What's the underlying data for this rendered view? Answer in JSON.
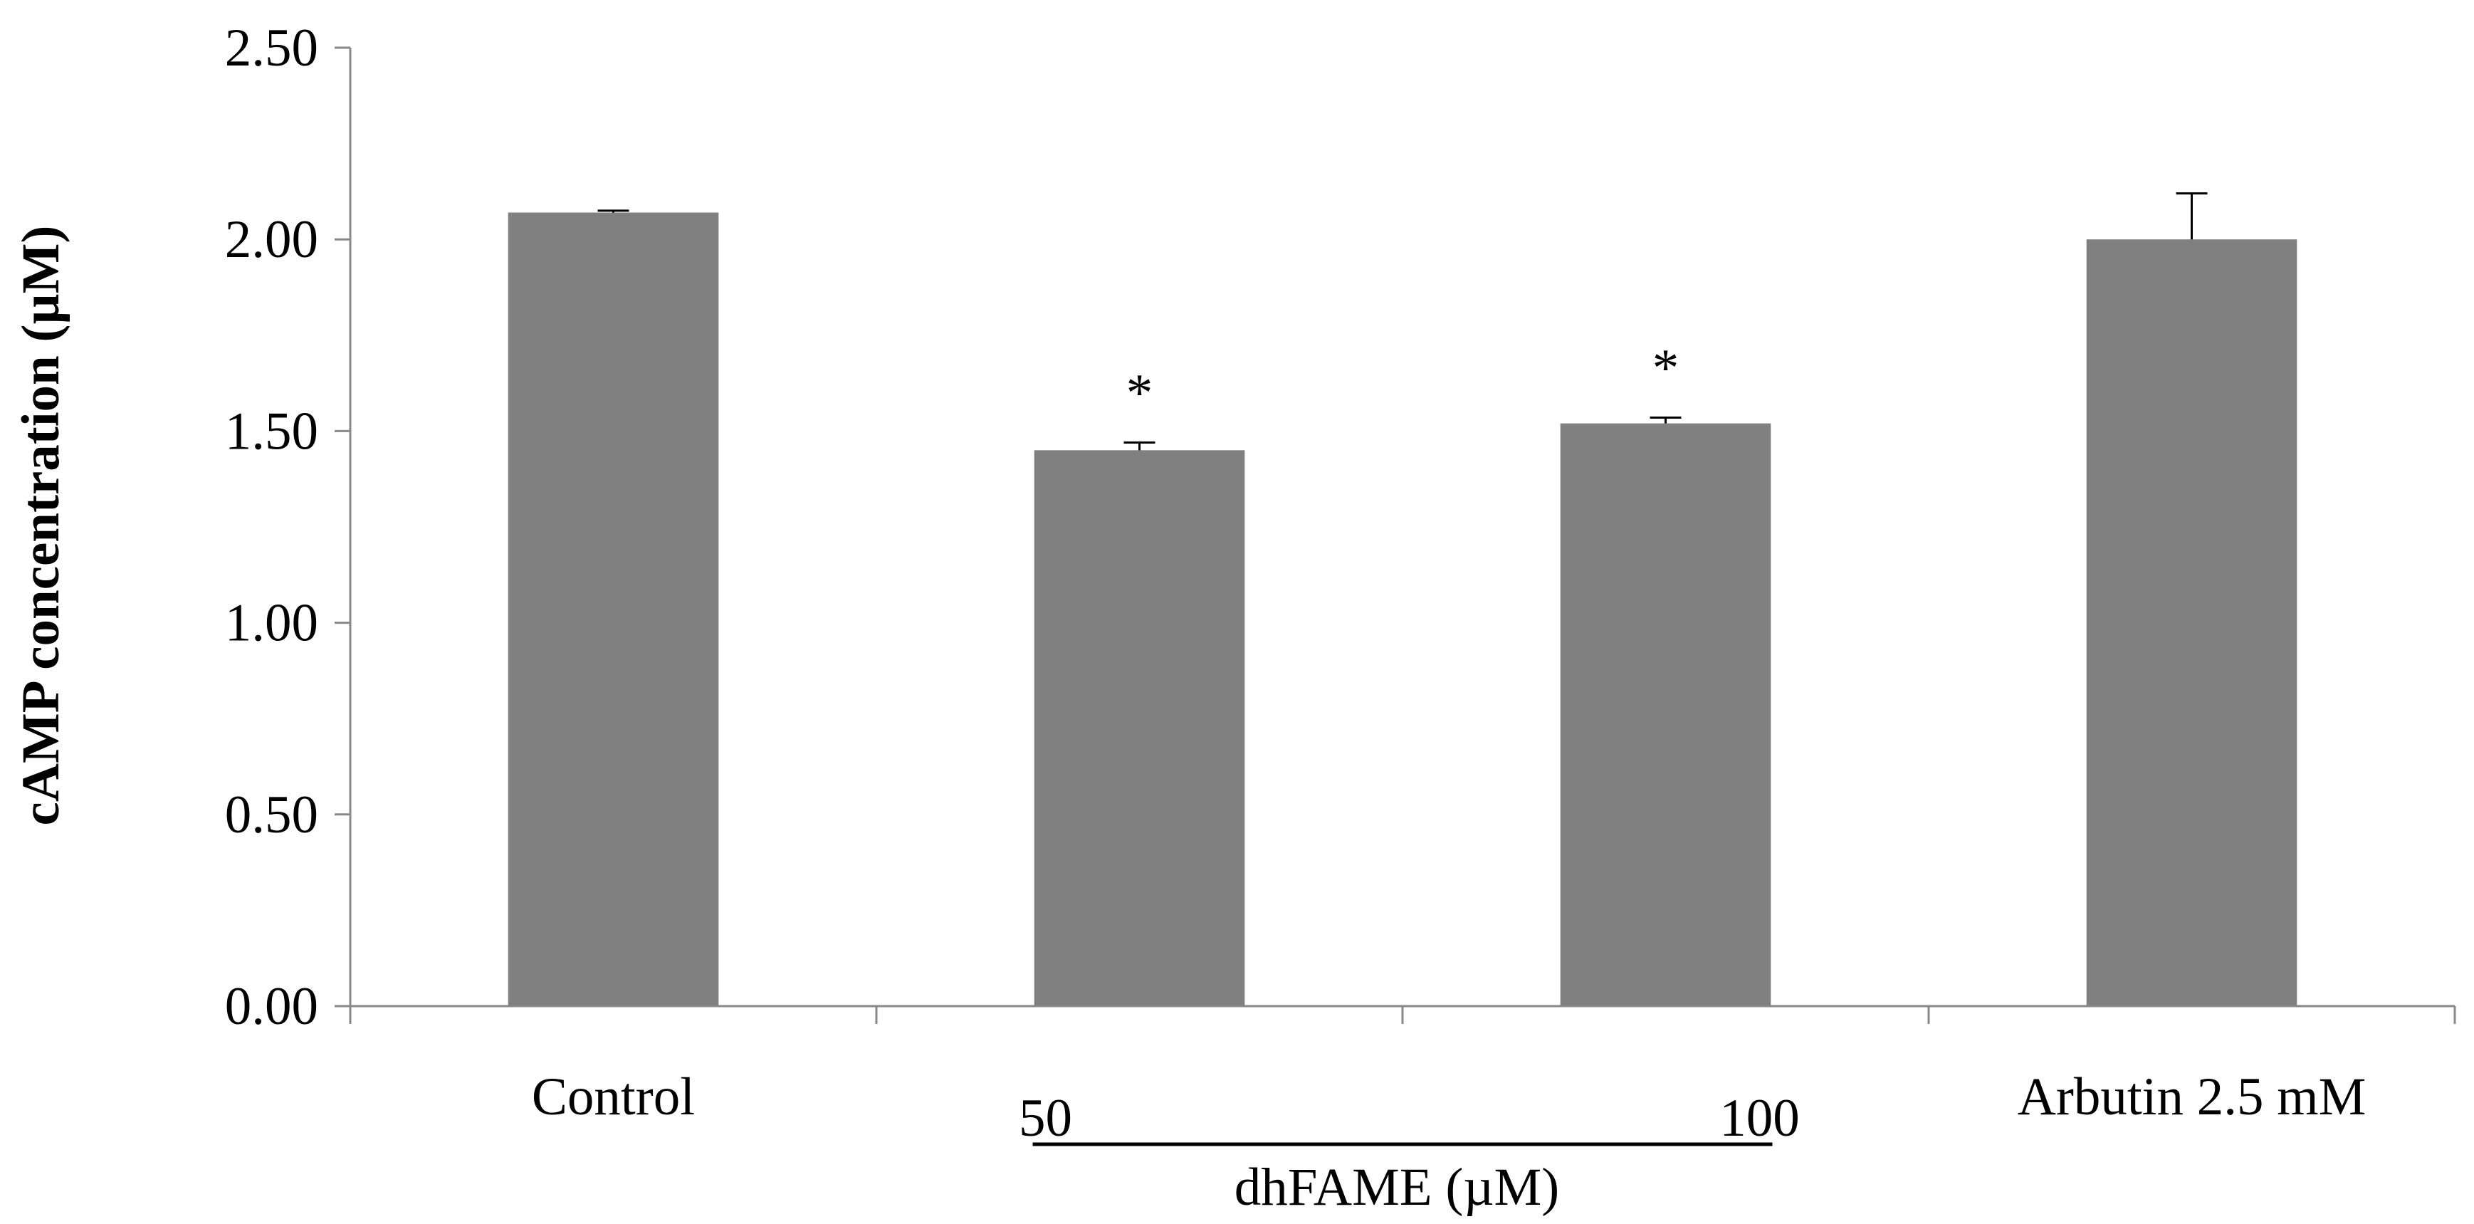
{
  "chart_data": {
    "type": "bar",
    "categories": [
      "Control",
      "50",
      "100",
      "Arbutin 2.5 mM"
    ],
    "values": [
      2.07,
      1.45,
      1.52,
      2.0
    ],
    "errors": [
      0.005,
      0.02,
      0.015,
      0.12
    ],
    "significance": [
      "",
      "*",
      "*",
      ""
    ],
    "group_label": "dhFAME  (µM)",
    "group_members": [
      1,
      2
    ],
    "ylabel": "cAMP concentration (µM)",
    "xlabel": "",
    "title": "",
    "ylim": [
      0,
      2.5
    ],
    "yticks": [
      "0.00",
      "0.50",
      "1.00",
      "1.50",
      "2.00",
      "2.50"
    ],
    "bar_color": "#808080",
    "legend": "none",
    "grid": false
  }
}
